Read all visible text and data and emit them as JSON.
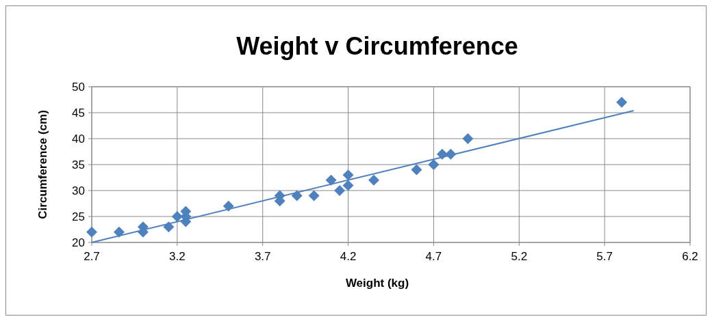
{
  "chart_data": {
    "type": "scatter",
    "title": "Weight v Circumference",
    "xlabel": "Weight (kg)",
    "ylabel": "Circumference (cm)",
    "xlim": [
      2.7,
      6.2
    ],
    "xticks": [
      2.7,
      3.2,
      3.7,
      4.2,
      4.7,
      5.2,
      5.7,
      6.2
    ],
    "ylim": [
      20,
      50
    ],
    "yticks": [
      20,
      25,
      30,
      35,
      40,
      45,
      50
    ],
    "grid": true,
    "marker": "diamond",
    "series": [
      {
        "color": "#4f81bd",
        "x": [
          2.7,
          2.86,
          3.0,
          3.0,
          3.15,
          3.2,
          3.25,
          3.25,
          3.25,
          3.5,
          3.8,
          3.8,
          3.9,
          4.0,
          4.1,
          4.15,
          4.2,
          4.2,
          4.35,
          4.6,
          4.7,
          4.75,
          4.8,
          4.9,
          5.8
        ],
        "values": [
          22,
          22,
          23,
          22,
          23,
          25,
          26,
          25,
          24,
          27,
          28,
          29,
          29,
          29,
          32,
          30,
          33,
          31,
          32,
          34,
          35,
          37,
          37,
          40,
          47
        ]
      },
      {
        "type": "line",
        "color": "#4f81bd",
        "marker": "none",
        "x": [
          2.7,
          5.87
        ],
        "values": [
          20,
          45.4
        ]
      }
    ]
  }
}
